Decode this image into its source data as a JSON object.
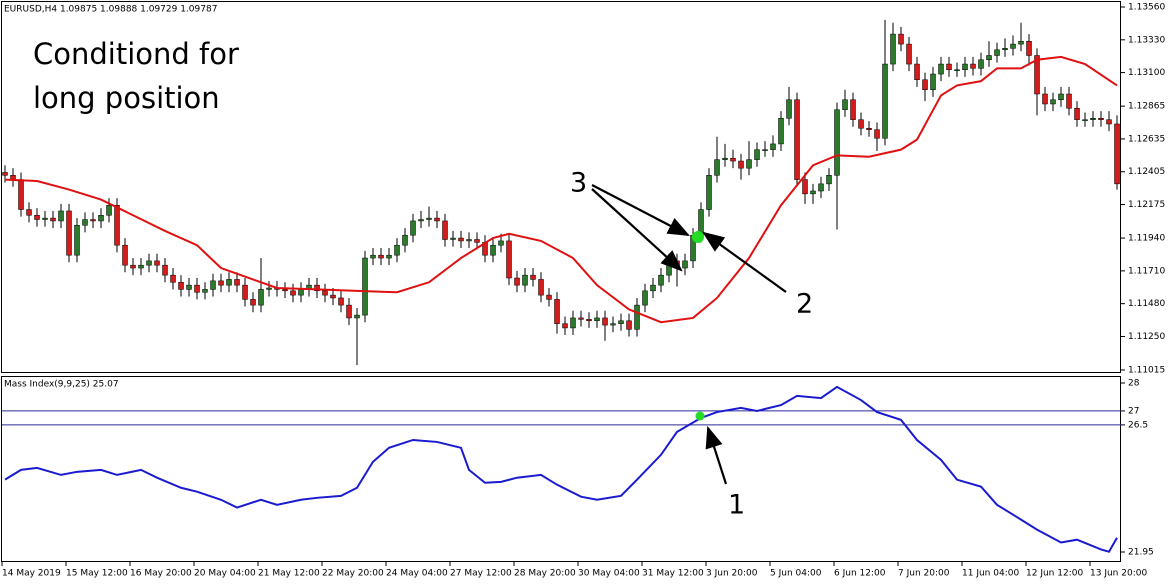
{
  "chart_data": [
    {
      "type": "candlestick",
      "title": "EURUSD,H4 1.09875 1.09888 1.09729 1.09787",
      "note": [
        "Conditiond for",
        "long position"
      ],
      "labels": [
        "3",
        "2"
      ],
      "bull_color": "#2c7a2c",
      "bear_color": "#d41c1c",
      "ylim": [
        1.11015,
        1.1356
      ],
      "yticks": [
        {
          "value": 1.1356,
          "label": "1.13560"
        },
        {
          "value": 1.1333,
          "label": "1.13330"
        },
        {
          "value": 1.131,
          "label": "1.13100"
        },
        1.12865,
        1.12635,
        1.12405,
        1.12175,
        {
          "value": 1.1194,
          "label": "1.11940"
        },
        {
          "value": 1.1171,
          "label": "1.11710"
        },
        {
          "value": 1.1148,
          "label": "1.11480"
        },
        {
          "value": 1.1125,
          "label": "1.11250"
        },
        1.11015
      ],
      "categories": [
        "14 May 2019",
        null,
        null,
        null,
        null,
        null,
        null,
        null,
        "15 May 12:00",
        null,
        null,
        null,
        null,
        null,
        null,
        null,
        "16 May 20:00",
        null,
        null,
        null,
        null,
        null,
        null,
        null,
        "20 May 04:00",
        null,
        null,
        null,
        null,
        null,
        null,
        null,
        "21 May 12:00",
        null,
        null,
        null,
        null,
        null,
        null,
        null,
        "22 May 20:00",
        null,
        null,
        null,
        null,
        null,
        null,
        null,
        "24 May 04:00",
        null,
        null,
        null,
        null,
        null,
        null,
        null,
        "27 May 12:00",
        null,
        null,
        null,
        null,
        null,
        null,
        null,
        "28 May 20:00",
        null,
        null,
        null,
        null,
        null,
        null,
        null,
        "30 May 04:00",
        null,
        null,
        null,
        null,
        null,
        null,
        null,
        "31 May 12:00",
        null,
        null,
        null,
        null,
        null,
        null,
        null,
        "3 Jun 20:00",
        null,
        null,
        null,
        null,
        null,
        null,
        null,
        "5 Jun 04:00",
        null,
        null,
        null,
        null,
        null,
        null,
        null,
        "6 Jun 12:00",
        null,
        null,
        null,
        null,
        null,
        null,
        null,
        "7 Jun 20:00",
        null,
        null,
        null,
        null,
        null,
        null,
        null,
        "11 Jun 04:00",
        null,
        null,
        null,
        null,
        null,
        null,
        null,
        "12 Jun 12:00",
        null,
        null,
        null,
        null,
        null,
        null,
        null,
        "13 Jun 20:00",
        null,
        null,
        null
      ],
      "ohlc": [
        [
          1.124,
          1.1245,
          1.1233,
          1.1238
        ],
        [
          1.1238,
          1.1243,
          1.123,
          1.1235
        ],
        [
          1.1235,
          1.124,
          1.1209,
          1.1214
        ],
        [
          1.1214,
          1.1219,
          1.1205,
          1.121
        ],
        [
          1.121,
          1.1215,
          1.1202,
          1.1207
        ],
        [
          1.1207,
          1.1213,
          1.1202,
          1.1208
        ],
        [
          1.1208,
          1.1213,
          1.1201,
          1.1206
        ],
        [
          1.1206,
          1.1218,
          1.1201,
          1.1213
        ],
        [
          1.1213,
          1.1218,
          1.1177,
          1.1182
        ],
        [
          1.1182,
          1.1208,
          1.1177,
          1.1203
        ],
        [
          1.1203,
          1.1212,
          1.1198,
          1.1207
        ],
        [
          1.1207,
          1.1212,
          1.1201,
          1.1206
        ],
        [
          1.1206,
          1.1215,
          1.1201,
          1.121
        ],
        [
          1.121,
          1.1222,
          1.1205,
          1.1217
        ],
        [
          1.1217,
          1.1222,
          1.1184,
          1.1189
        ],
        [
          1.1189,
          1.1194,
          1.117,
          1.1175
        ],
        [
          1.1175,
          1.118,
          1.1168,
          1.1173
        ],
        [
          1.1173,
          1.118,
          1.1168,
          1.1175
        ],
        [
          1.1175,
          1.1183,
          1.117,
          1.1178
        ],
        [
          1.1178,
          1.1183,
          1.117,
          1.1175
        ],
        [
          1.1175,
          1.118,
          1.1163,
          1.1168
        ],
        [
          1.1168,
          1.1173,
          1.1158,
          1.1163
        ],
        [
          1.1163,
          1.1168,
          1.1153,
          1.1158
        ],
        [
          1.1158,
          1.1166,
          1.1153,
          1.1161
        ],
        [
          1.1161,
          1.1166,
          1.1151,
          1.1156
        ],
        [
          1.1156,
          1.1163,
          1.1151,
          1.1158
        ],
        [
          1.1158,
          1.1169,
          1.1153,
          1.1164
        ],
        [
          1.1164,
          1.1169,
          1.1156,
          1.1161
        ],
        [
          1.1161,
          1.117,
          1.1156,
          1.1165
        ],
        [
          1.1165,
          1.117,
          1.1156,
          1.1161
        ],
        [
          1.1161,
          1.1166,
          1.1146,
          1.1151
        ],
        [
          1.1151,
          1.1156,
          1.1142,
          1.1147
        ],
        [
          1.1147,
          1.118,
          1.1142,
          1.1158
        ],
        [
          1.1158,
          1.1164,
          1.1153,
          1.1159
        ],
        [
          1.1159,
          1.1164,
          1.1153,
          1.1158
        ],
        [
          1.1158,
          1.1163,
          1.1152,
          1.1157
        ],
        [
          1.1157,
          1.1162,
          1.1149,
          1.1154
        ],
        [
          1.1154,
          1.1163,
          1.1149,
          1.1158
        ],
        [
          1.1158,
          1.1166,
          1.1153,
          1.1161
        ],
        [
          1.1161,
          1.1166,
          1.1152,
          1.1157
        ],
        [
          1.1157,
          1.1162,
          1.1149,
          1.1154
        ],
        [
          1.1154,
          1.1159,
          1.1147,
          1.1152
        ],
        [
          1.1152,
          1.1157,
          1.1142,
          1.1147
        ],
        [
          1.1147,
          1.1152,
          1.1133,
          1.1138
        ],
        [
          1.1138,
          1.1145,
          1.1105,
          1.114
        ],
        [
          1.114,
          1.1185,
          1.1135,
          1.118
        ],
        [
          1.118,
          1.1187,
          1.1175,
          1.1182
        ],
        [
          1.1182,
          1.1187,
          1.1175,
          1.118
        ],
        [
          1.118,
          1.1187,
          1.1175,
          1.1182
        ],
        [
          1.1182,
          1.1194,
          1.1177,
          1.1189
        ],
        [
          1.1189,
          1.1201,
          1.1184,
          1.1196
        ],
        [
          1.1196,
          1.1211,
          1.1191,
          1.1206
        ],
        [
          1.1206,
          1.1213,
          1.1201,
          1.1207
        ],
        [
          1.1207,
          1.1216,
          1.1202,
          1.1208
        ],
        [
          1.1208,
          1.1213,
          1.1201,
          1.1206
        ],
        [
          1.1206,
          1.1211,
          1.1188,
          1.1193
        ],
        [
          1.1193,
          1.1199,
          1.1188,
          1.1194
        ],
        [
          1.1194,
          1.1199,
          1.1187,
          1.1192
        ],
        [
          1.1192,
          1.1198,
          1.1187,
          1.1193
        ],
        [
          1.1193,
          1.1198,
          1.1186,
          1.1191
        ],
        [
          1.1191,
          1.1196,
          1.1177,
          1.1182
        ],
        [
          1.1182,
          1.1194,
          1.1177,
          1.1189
        ],
        [
          1.1189,
          1.1197,
          1.1184,
          1.1192
        ],
        [
          1.1192,
          1.1197,
          1.1161,
          1.1166
        ],
        [
          1.1166,
          1.1171,
          1.1156,
          1.1161
        ],
        [
          1.1161,
          1.1173,
          1.1156,
          1.1168
        ],
        [
          1.1168,
          1.1173,
          1.116,
          1.1165
        ],
        [
          1.1165,
          1.117,
          1.1149,
          1.1154
        ],
        [
          1.1154,
          1.1159,
          1.1146,
          1.1151
        ],
        [
          1.1151,
          1.1156,
          1.1127,
          1.1134
        ],
        [
          1.1134,
          1.1139,
          1.1126,
          1.1131
        ],
        [
          1.1131,
          1.1143,
          1.1126,
          1.1138
        ],
        [
          1.1138,
          1.1143,
          1.1132,
          1.1137
        ],
        [
          1.1137,
          1.1142,
          1.1131,
          1.1136
        ],
        [
          1.1136,
          1.1143,
          1.1131,
          1.1138
        ],
        [
          1.1138,
          1.1143,
          1.1122,
          1.1133
        ],
        [
          1.1133,
          1.1139,
          1.1128,
          1.1134
        ],
        [
          1.1134,
          1.1141,
          1.1129,
          1.1136
        ],
        [
          1.1136,
          1.1141,
          1.1125,
          1.113
        ],
        [
          1.113,
          1.1152,
          1.1125,
          1.1147
        ],
        [
          1.1147,
          1.1162,
          1.1142,
          1.1157
        ],
        [
          1.1157,
          1.1166,
          1.1152,
          1.1161
        ],
        [
          1.1161,
          1.1173,
          1.1156,
          1.1168
        ],
        [
          1.1168,
          1.1183,
          1.1163,
          1.1178
        ],
        [
          1.1178,
          1.1183,
          1.116,
          1.1173
        ],
        [
          1.1173,
          1.1183,
          1.1168,
          1.1178
        ],
        [
          1.1178,
          1.1201,
          1.1173,
          1.1196
        ],
        [
          1.1196,
          1.1219,
          1.1191,
          1.1214
        ],
        [
          1.1214,
          1.1243,
          1.1209,
          1.1238
        ],
        [
          1.1238,
          1.1265,
          1.1233,
          1.1249
        ],
        [
          1.1249,
          1.126,
          1.1244,
          1.125
        ],
        [
          1.125,
          1.1256,
          1.1243,
          1.1248
        ],
        [
          1.1248,
          1.1253,
          1.1235,
          1.1243
        ],
        [
          1.1243,
          1.1262,
          1.1238,
          1.1249
        ],
        [
          1.1249,
          1.1261,
          1.1244,
          1.1256
        ],
        [
          1.1256,
          1.1262,
          1.1251,
          1.1256
        ],
        [
          1.1256,
          1.1266,
          1.1251,
          1.126
        ],
        [
          1.126,
          1.1283,
          1.1255,
          1.1278
        ],
        [
          1.1278,
          1.13,
          1.1273,
          1.1291
        ],
        [
          1.1291,
          1.1296,
          1.123,
          1.1235
        ],
        [
          1.1235,
          1.124,
          1.1218,
          1.1225
        ],
        [
          1.1225,
          1.1232,
          1.1218,
          1.1227
        ],
        [
          1.1227,
          1.1237,
          1.1222,
          1.1232
        ],
        [
          1.1232,
          1.1243,
          1.1227,
          1.1238
        ],
        [
          1.1238,
          1.1289,
          1.12,
          1.1284
        ],
        [
          1.1284,
          1.1298,
          1.1279,
          1.1291
        ],
        [
          1.1291,
          1.1296,
          1.1272,
          1.1277
        ],
        [
          1.1277,
          1.1282,
          1.1266,
          1.1271
        ],
        [
          1.1271,
          1.1276,
          1.1265,
          1.127
        ],
        [
          1.127,
          1.1275,
          1.1255,
          1.1264
        ],
        [
          1.1264,
          1.1347,
          1.1259,
          1.1316
        ],
        [
          1.1316,
          1.1345,
          1.1311,
          1.1337
        ],
        [
          1.1337,
          1.1342,
          1.1325,
          1.133
        ],
        [
          1.133,
          1.1335,
          1.1311,
          1.1316
        ],
        [
          1.1316,
          1.1321,
          1.13,
          1.1305
        ],
        [
          1.1305,
          1.131,
          1.129,
          1.1298
        ],
        [
          1.1298,
          1.1314,
          1.1293,
          1.1309
        ],
        [
          1.1309,
          1.1321,
          1.1304,
          1.1316
        ],
        [
          1.1316,
          1.1321,
          1.1307,
          1.1312
        ],
        [
          1.1312,
          1.1317,
          1.1307,
          1.1312
        ],
        [
          1.1312,
          1.1321,
          1.1307,
          1.1316
        ],
        [
          1.1316,
          1.1321,
          1.1308,
          1.1313
        ],
        [
          1.1313,
          1.1324,
          1.1308,
          1.1319
        ],
        [
          1.1319,
          1.1332,
          1.1314,
          1.1322
        ],
        [
          1.1322,
          1.1331,
          1.1317,
          1.1326
        ],
        [
          1.1326,
          1.1334,
          1.1321,
          1.1327
        ],
        [
          1.1327,
          1.1336,
          1.1322,
          1.133
        ],
        [
          1.133,
          1.1345,
          1.1325,
          1.1332
        ],
        [
          1.1332,
          1.1337,
          1.1315,
          1.1322
        ],
        [
          1.1322,
          1.1327,
          1.128,
          1.1295
        ],
        [
          1.1295,
          1.13,
          1.1283,
          1.1288
        ],
        [
          1.1288,
          1.1296,
          1.1283,
          1.1291
        ],
        [
          1.1291,
          1.13,
          1.1286,
          1.1295
        ],
        [
          1.1295,
          1.13,
          1.128,
          1.1285
        ],
        [
          1.1285,
          1.129,
          1.1272,
          1.1277
        ],
        [
          1.1277,
          1.1282,
          1.1272,
          1.1277
        ],
        [
          1.1277,
          1.1283,
          1.1272,
          1.1278
        ],
        [
          1.1278,
          1.1283,
          1.1272,
          1.1277
        ],
        [
          1.1277,
          1.1283,
          1.1269,
          1.1274
        ],
        [
          1.1274,
          1.128,
          1.1228,
          1.1232
        ]
      ],
      "ma": {
        "color": "#e01010",
        "x": [
          0,
          4,
          8,
          12,
          16,
          20,
          24,
          27,
          31,
          34,
          39,
          44,
          49,
          53,
          57,
          61,
          63,
          67,
          71,
          74,
          78,
          82,
          86,
          89,
          93,
          97,
          101,
          104,
          108,
          112,
          114,
          117,
          119,
          122,
          124,
          127,
          129,
          132,
          135,
          139
        ],
        "values": [
          1.1235,
          1.1234,
          1.1228,
          1.1221,
          1.121,
          1.1199,
          1.1189,
          1.1173,
          1.1165,
          1.1159,
          1.1158,
          1.1157,
          1.1156,
          1.1163,
          1.118,
          1.1194,
          1.1197,
          1.1192,
          1.118,
          1.1161,
          1.1144,
          1.1135,
          1.1138,
          1.1152,
          1.118,
          1.1217,
          1.1245,
          1.1252,
          1.1251,
          1.1256,
          1.1263,
          1.1294,
          1.1301,
          1.1304,
          1.1313,
          1.1313,
          1.1319,
          1.1321,
          1.1316,
          1.1301
        ]
      }
    },
    {
      "type": "line",
      "title": "Mass Index(9,9,25) 25.07",
      "labels": [
        "1"
      ],
      "ylim": [
        21.95,
        28
      ],
      "yticks": [
        28,
        27,
        26.5,
        21.95
      ],
      "levels": [
        27,
        26.5
      ],
      "level_color": "#2a2a9a",
      "series": [
        {
          "color": "#1a1ad0",
          "x": [
            0,
            2,
            4,
            7,
            9,
            12,
            14,
            17,
            19,
            22,
            24,
            27,
            29,
            32,
            34,
            37,
            39,
            42,
            44,
            46,
            48,
            51,
            54,
            57,
            58,
            60,
            62,
            64,
            67,
            69,
            72,
            74,
            77,
            79,
            82,
            84,
            87,
            89,
            92,
            94,
            97,
            99,
            102,
            104,
            107,
            109,
            112,
            114,
            117,
            119,
            122,
            124,
            127,
            129,
            132,
            134,
            137,
            138,
            139
          ],
          "values": [
            24.54,
            24.89,
            24.96,
            24.71,
            24.82,
            24.89,
            24.71,
            24.89,
            24.61,
            24.25,
            24.11,
            23.82,
            23.54,
            23.82,
            23.64,
            23.82,
            23.89,
            23.96,
            24.25,
            25.18,
            25.68,
            25.96,
            25.89,
            25.68,
            24.89,
            24.43,
            24.46,
            24.61,
            24.71,
            24.36,
            23.93,
            23.82,
            23.96,
            24.54,
            25.43,
            26.25,
            26.75,
            26.96,
            27.11,
            27.0,
            27.21,
            27.54,
            27.46,
            27.86,
            27.39,
            26.96,
            26.68,
            25.96,
            25.25,
            24.54,
            24.29,
            23.64,
            23.11,
            22.75,
            22.29,
            22.39,
            22.04,
            21.96,
            22.46
          ]
        }
      ]
    }
  ]
}
